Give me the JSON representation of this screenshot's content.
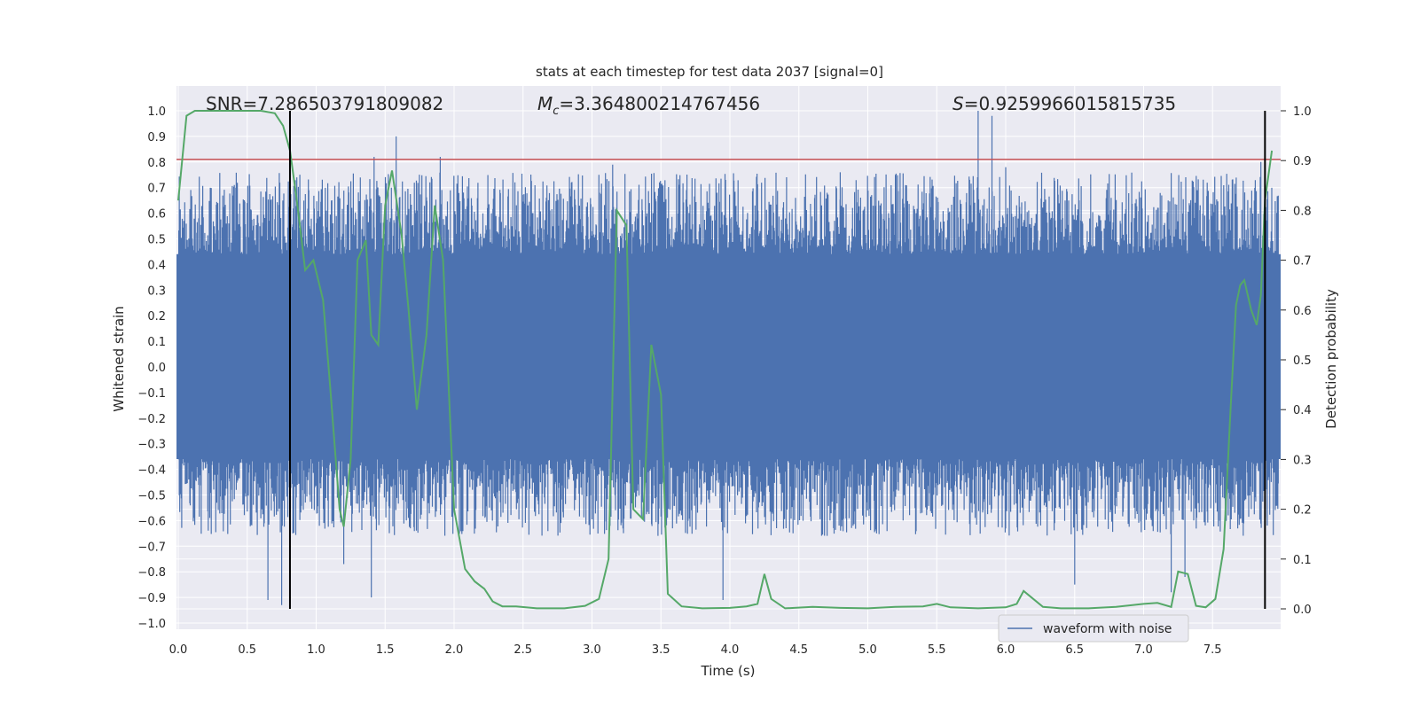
{
  "chart_data": {
    "type": "line",
    "title": "stats at each timestep for test data 2037 [signal=0]",
    "xlabel": "Time (s)",
    "ylabel": "Whitened strain",
    "y2label": "Detection probability",
    "xlim": [
      0.0,
      8.0
    ],
    "ylim": [
      -1.03,
      1.03
    ],
    "y2lim": [
      -0.01,
      1.025
    ],
    "x_ticks": [
      "0.0",
      "0.5",
      "1.0",
      "1.5",
      "2.0",
      "2.5",
      "3.0",
      "3.5",
      "4.0",
      "4.5",
      "5.0",
      "5.5",
      "6.0",
      "6.5",
      "7.0",
      "7.5"
    ],
    "y_ticks": [
      "1.0",
      "0.9",
      "0.8",
      "0.7",
      "0.6",
      "0.5",
      "0.4",
      "0.3",
      "0.2",
      "0.1",
      "0.0",
      "−0.1",
      "−0.2",
      "−0.3",
      "−0.4",
      "−0.5",
      "−0.6",
      "−0.7",
      "−0.8",
      "−0.9",
      "−1.0"
    ],
    "y2_ticks": [
      "1.0",
      "0.9",
      "0.8",
      "0.7",
      "0.6",
      "0.5",
      "0.4",
      "0.3",
      "0.2",
      "0.1",
      "0.0"
    ],
    "grid": true,
    "legend_position": "bottom-right",
    "annotations": {
      "snr": "SNR=7.286503791809082",
      "mc_symbol": "M",
      "mc_sub": "c",
      "mc_value": "=3.364800214767456",
      "s_symbol": "S",
      "s_value": "=0.9259966015815735"
    },
    "threshold": {
      "value": 0.81,
      "color": "#c44e52"
    },
    "vertical_lines": [
      0.81,
      7.88
    ],
    "series": [
      {
        "name": "waveform with noise",
        "color": "#4c72b0",
        "axis": "left",
        "kind": "noise",
        "core_band": [
          -0.36,
          0.44
        ],
        "peaks": [
          [
            1.42,
            0.82
          ],
          [
            1.58,
            0.9
          ],
          [
            1.9,
            0.82
          ],
          [
            3.05,
            0.75
          ],
          [
            3.15,
            0.79
          ],
          [
            4.8,
            0.76
          ],
          [
            5.2,
            0.75
          ],
          [
            5.8,
            1.0
          ],
          [
            5.9,
            0.98
          ],
          [
            6.0,
            0.78
          ],
          [
            7.85,
            0.8
          ]
        ],
        "troughs": [
          [
            0.75,
            -0.93
          ],
          [
            0.65,
            -0.91
          ],
          [
            1.4,
            -0.9
          ],
          [
            1.2,
            -0.77
          ],
          [
            3.95,
            -0.91
          ],
          [
            6.5,
            -0.85
          ],
          [
            7.2,
            -0.88
          ],
          [
            7.3,
            -0.82
          ]
        ]
      },
      {
        "name": "detection probability",
        "color": "#55a868",
        "axis": "right",
        "x": [
          0.0,
          0.06,
          0.12,
          0.2,
          0.3,
          0.4,
          0.5,
          0.6,
          0.7,
          0.76,
          0.81,
          0.86,
          0.92,
          0.98,
          1.05,
          1.1,
          1.17,
          1.2,
          1.25,
          1.3,
          1.36,
          1.4,
          1.45,
          1.5,
          1.55,
          1.62,
          1.67,
          1.73,
          1.8,
          1.86,
          1.92,
          2.0,
          2.08,
          2.15,
          2.22,
          2.28,
          2.35,
          2.45,
          2.6,
          2.8,
          2.95,
          3.05,
          3.12,
          3.18,
          3.25,
          3.3,
          3.37,
          3.43,
          3.5,
          3.55,
          3.65,
          3.8,
          4.0,
          4.12,
          4.2,
          4.25,
          4.3,
          4.4,
          4.6,
          4.8,
          5.0,
          5.2,
          5.4,
          5.5,
          5.6,
          5.8,
          6.0,
          6.08,
          6.13,
          6.2,
          6.27,
          6.4,
          6.6,
          6.8,
          7.0,
          7.1,
          7.2,
          7.25,
          7.32,
          7.38,
          7.45,
          7.52,
          7.58,
          7.63,
          7.67,
          7.7,
          7.73,
          7.78,
          7.82,
          7.85,
          7.88,
          7.93
        ],
        "y": [
          0.82,
          0.99,
          1.0,
          1.0,
          1.0,
          1.0,
          1.0,
          1.0,
          0.995,
          0.97,
          0.92,
          0.82,
          0.68,
          0.7,
          0.62,
          0.45,
          0.2,
          0.165,
          0.3,
          0.7,
          0.74,
          0.55,
          0.53,
          0.81,
          0.88,
          0.75,
          0.6,
          0.4,
          0.55,
          0.81,
          0.7,
          0.2,
          0.08,
          0.055,
          0.04,
          0.015,
          0.005,
          0.005,
          0.001,
          0.001,
          0.006,
          0.02,
          0.1,
          0.8,
          0.77,
          0.2,
          0.18,
          0.53,
          0.43,
          0.03,
          0.005,
          0.001,
          0.002,
          0.005,
          0.01,
          0.07,
          0.02,
          0.001,
          0.004,
          0.002,
          0.001,
          0.004,
          0.005,
          0.01,
          0.003,
          0.001,
          0.003,
          0.01,
          0.036,
          0.02,
          0.004,
          0.001,
          0.001,
          0.004,
          0.01,
          0.012,
          0.004,
          0.075,
          0.07,
          0.006,
          0.003,
          0.02,
          0.12,
          0.4,
          0.61,
          0.65,
          0.66,
          0.6,
          0.57,
          0.63,
          0.82,
          0.92
        ]
      }
    ]
  }
}
